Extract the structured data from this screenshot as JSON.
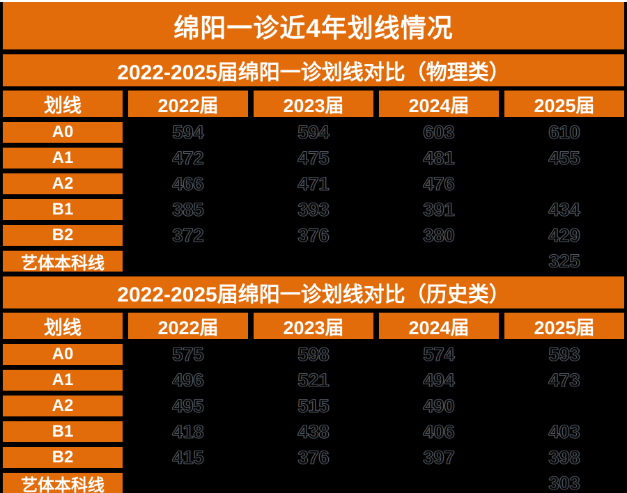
{
  "page_title": "绵阳一诊近4年划线情况",
  "colors": {
    "orange": "#E26B0A",
    "black": "#000000",
    "white": "#FFFFFF"
  },
  "tables": [
    {
      "subtitle": "2022-2025届绵阳一诊划线对比（物理类）",
      "columns": [
        "划线",
        "2022届",
        "2023届",
        "2024届",
        "2025届"
      ],
      "rows": [
        {
          "label": "A0",
          "values": [
            "594",
            "594",
            "603",
            "610"
          ]
        },
        {
          "label": "A1",
          "values": [
            "472",
            "475",
            "481",
            "455"
          ]
        },
        {
          "label": "A2",
          "values": [
            "466",
            "471",
            "476",
            ""
          ]
        },
        {
          "label": "B1",
          "values": [
            "385",
            "393",
            "391",
            "434"
          ]
        },
        {
          "label": "B2",
          "values": [
            "372",
            "376",
            "380",
            "429"
          ]
        },
        {
          "label": "艺体本科线",
          "values": [
            "",
            "",
            "",
            "325"
          ]
        }
      ]
    },
    {
      "subtitle": "2022-2025届绵阳一诊划线对比（历史类）",
      "columns": [
        "划线",
        "2022届",
        "2023届",
        "2024届",
        "2025届"
      ],
      "rows": [
        {
          "label": "A0",
          "values": [
            "575",
            "598",
            "574",
            "593"
          ]
        },
        {
          "label": "A1",
          "values": [
            "496",
            "521",
            "494",
            "473"
          ]
        },
        {
          "label": "A2",
          "values": [
            "495",
            "515",
            "490",
            ""
          ]
        },
        {
          "label": "B1",
          "values": [
            "418",
            "438",
            "406",
            "403"
          ]
        },
        {
          "label": "B2",
          "values": [
            "415",
            "376",
            "397",
            "398"
          ]
        },
        {
          "label": "艺体本科线",
          "values": [
            "",
            "",
            "",
            "303"
          ]
        }
      ]
    }
  ],
  "chart_data": {
    "type": "table",
    "title": "绵阳一诊近4年划线情况",
    "subtables": [
      {
        "title": "2022-2025届绵阳一诊划线对比（物理类）",
        "categories": [
          "2022届",
          "2023届",
          "2024届",
          "2025届"
        ],
        "series": [
          {
            "name": "A0",
            "values": [
              594,
              594,
              603,
              610
            ]
          },
          {
            "name": "A1",
            "values": [
              472,
              475,
              481,
              455
            ]
          },
          {
            "name": "A2",
            "values": [
              466,
              471,
              476,
              null
            ]
          },
          {
            "name": "B1",
            "values": [
              385,
              393,
              391,
              434
            ]
          },
          {
            "name": "B2",
            "values": [
              372,
              376,
              380,
              429
            ]
          },
          {
            "name": "艺体本科线",
            "values": [
              null,
              null,
              null,
              325
            ]
          }
        ]
      },
      {
        "title": "2022-2025届绵阳一诊划线对比（历史类）",
        "categories": [
          "2022届",
          "2023届",
          "2024届",
          "2025届"
        ],
        "series": [
          {
            "name": "A0",
            "values": [
              575,
              598,
              574,
              593
            ]
          },
          {
            "name": "A1",
            "values": [
              496,
              521,
              494,
              473
            ]
          },
          {
            "name": "A2",
            "values": [
              495,
              515,
              490,
              null
            ]
          },
          {
            "name": "B1",
            "values": [
              418,
              438,
              406,
              403
            ]
          },
          {
            "name": "B2",
            "values": [
              415,
              376,
              397,
              398
            ]
          },
          {
            "name": "艺体本科线",
            "values": [
              null,
              null,
              null,
              303
            ]
          }
        ]
      }
    ]
  }
}
